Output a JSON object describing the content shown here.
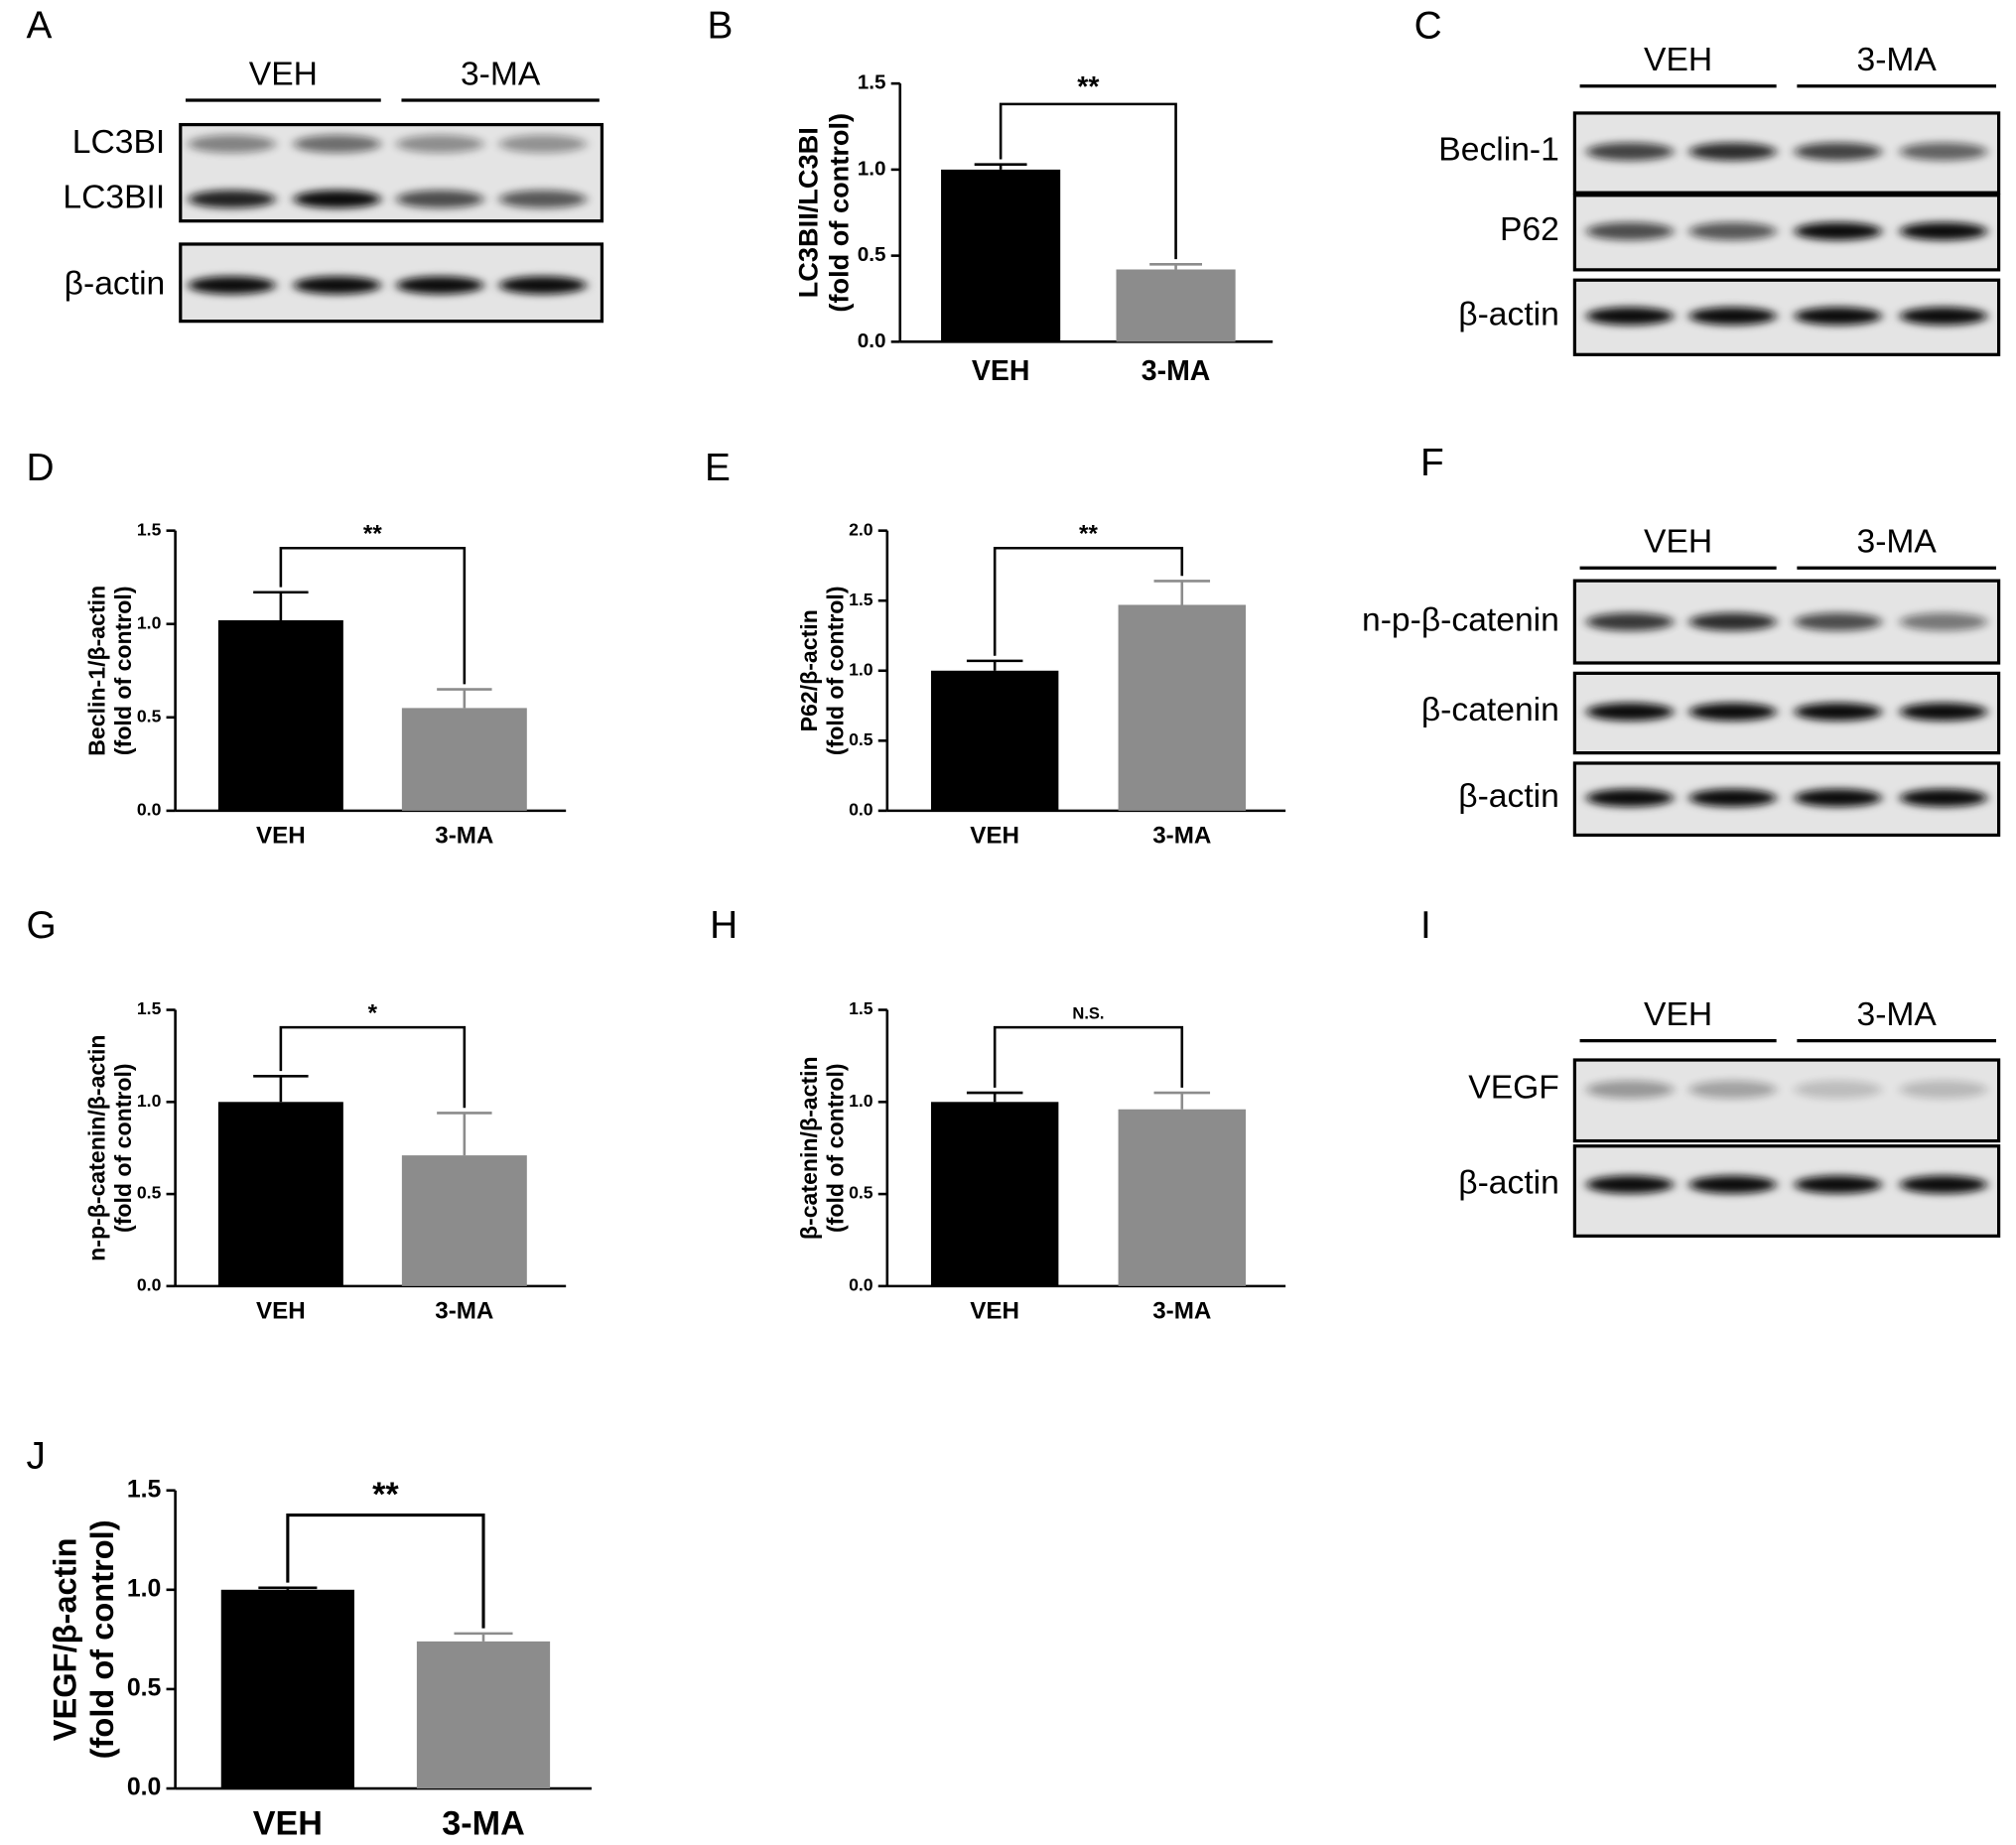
{
  "chart_data": [
    {
      "type": "bar",
      "panel": "B",
      "y_label": [
        "LC3BII/LC3BI",
        "(fold of control)"
      ],
      "categories": [
        "VEH",
        "3-MA"
      ],
      "values": [
        1.0,
        0.42
      ],
      "errors": [
        0.03,
        0.03
      ],
      "colors": [
        "#000000",
        "#8c8c8c"
      ],
      "ylim": [
        0,
        1.5
      ],
      "yticks": [
        {
          "value": 0,
          "label": "0.0"
        },
        0.5,
        {
          "value": 1,
          "label": "1.0"
        },
        1.5
      ],
      "significance": "**"
    },
    {
      "type": "bar",
      "panel": "D",
      "y_label": [
        "Beclin-1/β-actin",
        "(fold of control)"
      ],
      "categories": [
        "VEH",
        "3-MA"
      ],
      "values": [
        1.02,
        0.55
      ],
      "errors": [
        0.15,
        0.1
      ],
      "colors": [
        "#000000",
        "#8c8c8c"
      ],
      "ylim": [
        0,
        1.5
      ],
      "yticks": [
        {
          "value": 0,
          "label": "0.0"
        },
        0.5,
        {
          "value": 1,
          "label": "1.0"
        },
        1.5
      ],
      "significance": "**"
    },
    {
      "type": "bar",
      "panel": "E",
      "y_label": [
        "P62/β-actin",
        "(fold of control)"
      ],
      "categories": [
        "VEH",
        "3-MA"
      ],
      "values": [
        1.0,
        1.47
      ],
      "errors": [
        0.07,
        0.17
      ],
      "colors": [
        "#000000",
        "#8c8c8c"
      ],
      "ylim": [
        0,
        2
      ],
      "yticks": [
        {
          "value": 0,
          "label": "0.0"
        },
        0.5,
        {
          "value": 1,
          "label": "1.0"
        },
        1.5,
        {
          "value": 2,
          "label": "2.0"
        }
      ],
      "significance": "**"
    },
    {
      "type": "bar",
      "panel": "G",
      "y_label": [
        "n-p-β-catenin/β-actin",
        "(fold of control)"
      ],
      "categories": [
        "VEH",
        "3-MA"
      ],
      "values": [
        1.0,
        0.71
      ],
      "errors": [
        0.14,
        0.23
      ],
      "colors": [
        "#000000",
        "#8c8c8c"
      ],
      "ylim": [
        0,
        1.5
      ],
      "yticks": [
        {
          "value": 0,
          "label": "0.0"
        },
        0.5,
        {
          "value": 1,
          "label": "1.0"
        },
        1.5
      ],
      "significance": "*"
    },
    {
      "type": "bar",
      "panel": "H",
      "y_label": [
        "β-catenin/β-actin",
        "(fold of control)"
      ],
      "categories": [
        "VEH",
        "3-MA"
      ],
      "values": [
        1.0,
        0.96
      ],
      "errors": [
        0.05,
        0.09
      ],
      "colors": [
        "#000000",
        "#8c8c8c"
      ],
      "ylim": [
        0,
        1.5
      ],
      "yticks": [
        {
          "value": 0,
          "label": "0.0"
        },
        0.5,
        {
          "value": 1,
          "label": "1.0"
        },
        1.5
      ],
      "significance": "N.S."
    },
    {
      "type": "bar",
      "panel": "J",
      "y_label": [
        "VEGF/β-actin",
        "(fold of control)"
      ],
      "categories": [
        "VEH",
        "3-MA"
      ],
      "values": [
        1.0,
        0.74
      ],
      "errors": [
        0.01,
        0.04
      ],
      "colors": [
        "#000000",
        "#8c8c8c"
      ],
      "ylim": [
        0,
        1.5
      ],
      "yticks": [
        {
          "value": 0,
          "label": "0.0"
        },
        0.5,
        {
          "value": 1,
          "label": "1.0"
        },
        1.5
      ],
      "significance": "**"
    }
  ],
  "blots": [
    {
      "panel": "A",
      "groups": [
        "VEH",
        "3-MA"
      ],
      "rows": [
        {
          "labels": [
            "LC3BI",
            "LC3BII"
          ]
        },
        {
          "labels": [
            "β-actin"
          ]
        }
      ]
    },
    {
      "panel": "C",
      "groups": [
        "VEH",
        "3-MA"
      ],
      "rows": [
        {
          "labels": [
            "Beclin-1"
          ]
        },
        {
          "labels": [
            "P62"
          ]
        },
        {
          "labels": [
            "β-actin"
          ]
        }
      ]
    },
    {
      "panel": "F",
      "groups": [
        "VEH",
        "3-MA"
      ],
      "rows": [
        {
          "labels": [
            "n-p-β-catenin"
          ]
        },
        {
          "labels": [
            "β-catenin"
          ]
        },
        {
          "labels": [
            "β-actin"
          ]
        }
      ]
    },
    {
      "panel": "I",
      "groups": [
        "VEH",
        "3-MA"
      ],
      "rows": [
        {
          "labels": [
            "VEGF"
          ]
        },
        {
          "labels": [
            "β-actin"
          ]
        }
      ]
    }
  ]
}
